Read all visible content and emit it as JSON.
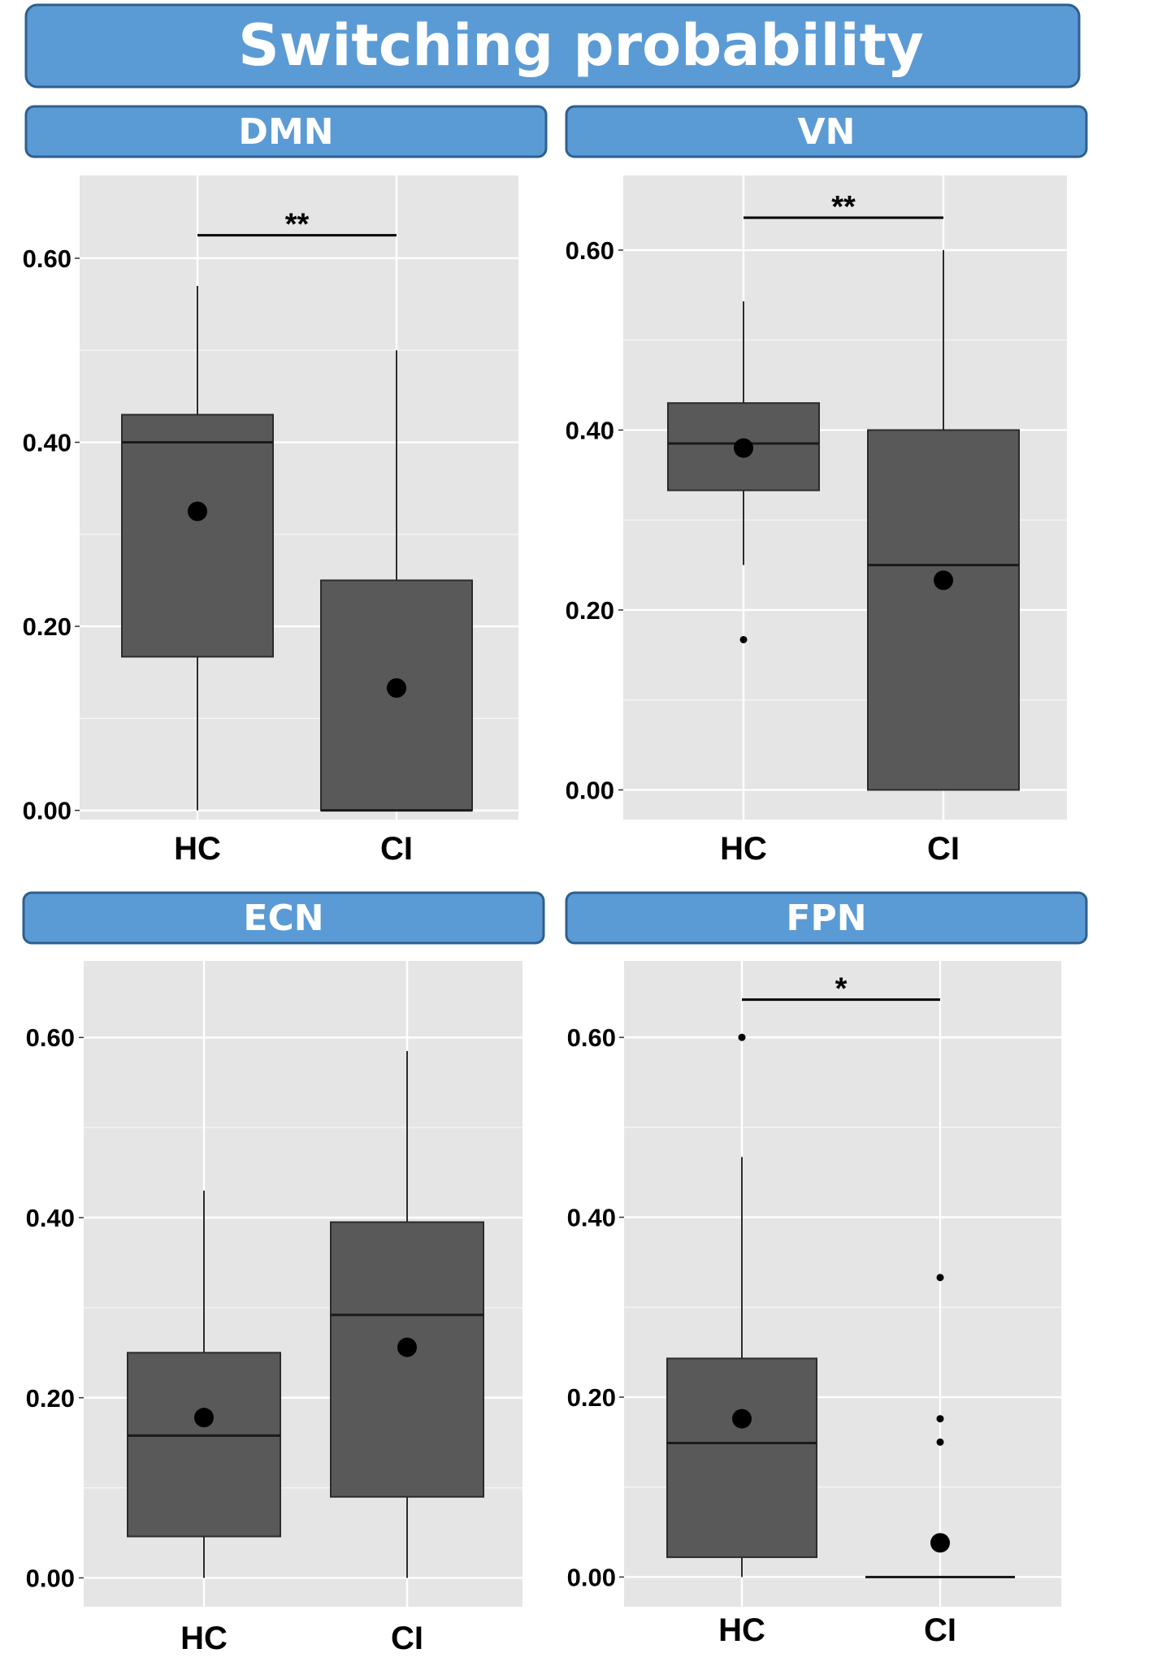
{
  "header": {
    "title": "Switching probability"
  },
  "colors": {
    "banner_fill": "#5b9bd5",
    "banner_stroke": "#2f5f8e",
    "panel_bg": "#e5e5e5",
    "grid": "#ffffff",
    "box_fill": "#595959",
    "box_line": "#2b2b2b",
    "point": "#000000"
  },
  "chart_data": [
    {
      "type": "box",
      "title": "DMN",
      "categories": [
        "HC",
        "CI"
      ],
      "yticks": [
        "0.00",
        "0.20",
        "0.40",
        "0.60"
      ],
      "ylim": [
        -0.01,
        0.69
      ],
      "groups": [
        {
          "name": "HC",
          "whisker_low": 0.0,
          "q1": 0.167,
          "median": 0.4,
          "q3": 0.43,
          "whisker_high": 0.57,
          "mean": 0.325,
          "outliers": []
        },
        {
          "name": "CI",
          "whisker_low": 0.0,
          "q1": 0.0,
          "median": 0.0,
          "q3": 0.25,
          "whisker_high": 0.5,
          "mean": 0.133,
          "outliers": []
        }
      ],
      "significance": {
        "label": "**",
        "y": 0.625
      }
    },
    {
      "type": "box",
      "title": "VN",
      "categories": [
        "HC",
        "CI"
      ],
      "yticks": [
        "0.00",
        "0.20",
        "0.40",
        "0.60"
      ],
      "ylim": [
        -0.033,
        0.683
      ],
      "groups": [
        {
          "name": "HC",
          "whisker_low": 0.25,
          "q1": 0.333,
          "median": 0.385,
          "q3": 0.43,
          "whisker_high": 0.543,
          "mean": 0.38,
          "outliers": [
            0.167
          ]
        },
        {
          "name": "CI",
          "whisker_low": 0.0,
          "q1": 0.0,
          "median": 0.25,
          "q3": 0.4,
          "whisker_high": 0.6,
          "mean": 0.233,
          "outliers": []
        }
      ],
      "significance": {
        "label": "**",
        "y": 0.636
      }
    },
    {
      "type": "box",
      "title": "ECN",
      "categories": [
        "HC",
        "CI"
      ],
      "yticks": [
        "0.00",
        "0.20",
        "0.40",
        "0.60"
      ],
      "ylim": [
        -0.032,
        0.685
      ],
      "groups": [
        {
          "name": "HC",
          "whisker_low": 0.0,
          "q1": 0.046,
          "median": 0.158,
          "q3": 0.25,
          "whisker_high": 0.43,
          "mean": 0.178,
          "outliers": []
        },
        {
          "name": "CI",
          "whisker_low": 0.0,
          "q1": 0.09,
          "median": 0.292,
          "q3": 0.395,
          "whisker_high": 0.585,
          "mean": 0.256,
          "outliers": []
        }
      ],
      "significance": null
    },
    {
      "type": "box",
      "title": "FPN",
      "categories": [
        "HC",
        "CI"
      ],
      "yticks": [
        "0.00",
        "0.20",
        "0.40",
        "0.60"
      ],
      "ylim": [
        -0.033,
        0.685
      ],
      "groups": [
        {
          "name": "HC",
          "whisker_low": 0.0,
          "q1": 0.022,
          "median": 0.149,
          "q3": 0.243,
          "whisker_high": 0.467,
          "mean": 0.176,
          "outliers": [
            0.6
          ]
        },
        {
          "name": "CI",
          "whisker_low": 0.0,
          "q1": 0.0,
          "median": 0.0,
          "q3": 0.0,
          "whisker_high": 0.0,
          "mean": 0.038,
          "outliers": [
            0.333,
            0.176,
            0.15
          ]
        }
      ],
      "significance": {
        "label": "*",
        "y": 0.642
      }
    }
  ]
}
